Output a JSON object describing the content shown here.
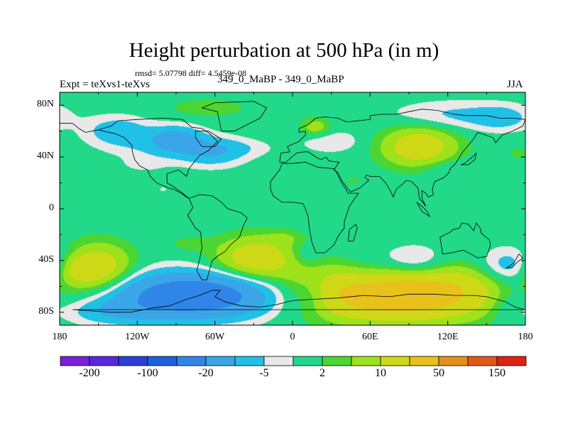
{
  "figure": {
    "title": "Height perturbation at 500 hPa (in m)",
    "stats": "rmsd= 5.07798 diff= 4.5459e-08",
    "left_label": "Expt = teXvs1-teXvs",
    "center_label": "349_0_MaBP - 349_0_MaBP",
    "right_label": "JJA"
  },
  "chart_data": {
    "type": "heatmap",
    "title": "Height perturbation at 500 hPa (in m)",
    "variable": "500 hPa geopotential height perturbation",
    "units": "m",
    "season": "JJA",
    "xlim": [
      -180,
      180
    ],
    "ylim": [
      -90,
      90
    ],
    "x_ticks": [
      {
        "value": -180,
        "label": "180"
      },
      {
        "value": -120,
        "label": "120W"
      },
      {
        "value": -60,
        "label": "60W"
      },
      {
        "value": 0,
        "label": "0"
      },
      {
        "value": 60,
        "label": "60E"
      },
      {
        "value": 120,
        "label": "120E"
      },
      {
        "value": 180,
        "label": "180"
      }
    ],
    "y_ticks": [
      {
        "value": 80,
        "label": "80N"
      },
      {
        "value": 40,
        "label": "40N"
      },
      {
        "value": 0,
        "label": "0"
      },
      {
        "value": -40,
        "label": "40S"
      },
      {
        "value": -80,
        "label": "80S"
      }
    ],
    "colorbar": {
      "colors": [
        "#7c1fd6",
        "#5a28e0",
        "#2b3fd8",
        "#1e5fe0",
        "#2f86e8",
        "#3aa6e8",
        "#21c0e6",
        "#e8e8e8",
        "#22d889",
        "#4cd633",
        "#9ee21b",
        "#cfd816",
        "#e8c11a",
        "#e58f1a",
        "#e3561b",
        "#e02010"
      ],
      "labels": [
        {
          "boundary": 1,
          "label": "-200"
        },
        {
          "boundary": 3,
          "label": "-100"
        },
        {
          "boundary": 5,
          "label": "-20"
        },
        {
          "boundary": 7,
          "label": "-5"
        },
        {
          "boundary": 9,
          "label": "2"
        },
        {
          "boundary": 11,
          "label": "10"
        },
        {
          "boundary": 13,
          "label": "50"
        },
        {
          "boundary": 15,
          "label": "150"
        }
      ]
    },
    "anomalies": [
      {
        "lon": -168,
        "lat": -47,
        "sx": 11,
        "sy": 8,
        "amp": 8
      },
      {
        "lon": -150,
        "lat": -46,
        "sx": 18,
        "sy": 13,
        "amp": 16
      },
      {
        "lon": -75,
        "lat": -67,
        "sx": 45,
        "sy": 12,
        "amp": -32
      },
      {
        "lon": -140,
        "lat": -80,
        "sx": 28,
        "sy": 7,
        "amp": -7
      },
      {
        "lon": -28,
        "lat": -39,
        "sx": 22,
        "sy": 12,
        "amp": 16
      },
      {
        "lon": -80,
        "lat": -27,
        "sx": 12,
        "sy": 4,
        "amp": 3
      },
      {
        "lon": -5,
        "lat": -22,
        "sx": 10,
        "sy": 4,
        "amp": 3
      },
      {
        "lon": 10,
        "lat": -36,
        "sx": 9,
        "sy": 6,
        "amp": -4
      },
      {
        "lon": 16,
        "lat": -67,
        "sx": 10,
        "sy": 10,
        "amp": -6
      },
      {
        "lon": 60,
        "lat": -52,
        "sx": 18,
        "sy": 12,
        "amp": -7
      },
      {
        "lon": 95,
        "lat": -44,
        "sx": 18,
        "sy": 10,
        "amp": -10
      },
      {
        "lon": 80,
        "lat": -65,
        "sx": 52,
        "sy": 14,
        "amp": 34
      },
      {
        "lon": 170,
        "lat": -45,
        "sx": 18,
        "sy": 10,
        "amp": -10
      },
      {
        "lon": 165,
        "lat": -72,
        "sx": 12,
        "sy": 10,
        "amp": -5
      },
      {
        "lon": -135,
        "lat": 60,
        "sx": 18,
        "sy": 8,
        "amp": -8
      },
      {
        "lon": -90,
        "lat": 54,
        "sx": 14,
        "sy": 7,
        "amp": -12
      },
      {
        "lon": -115,
        "lat": 34,
        "sx": 12,
        "sy": 4,
        "amp": -2.5
      },
      {
        "lon": -105,
        "lat": 47,
        "sx": 25,
        "sy": 8,
        "amp": -4
      },
      {
        "lon": -62,
        "lat": 44,
        "sx": 18,
        "sy": 8,
        "amp": -9
      },
      {
        "lon": -40,
        "lat": 47,
        "sx": 20,
        "sy": 5,
        "amp": -3
      },
      {
        "lon": -65,
        "lat": 78,
        "sx": 22,
        "sy": 5,
        "amp": 4
      },
      {
        "lon": -100,
        "lat": 15,
        "sx": 5,
        "sy": 3,
        "amp": -2.2
      },
      {
        "lon": 18,
        "lat": 63,
        "sx": 8,
        "sy": 5,
        "amp": 8
      },
      {
        "lon": 30,
        "lat": 52,
        "sx": 16,
        "sy": 6,
        "amp": -5
      },
      {
        "lon": 47,
        "lat": 22,
        "sx": 5,
        "sy": 2,
        "amp": 3
      },
      {
        "lon": 98,
        "lat": 48,
        "sx": 20,
        "sy": 11,
        "amp": 16
      },
      {
        "lon": 125,
        "lat": 72,
        "sx": 35,
        "sy": 8,
        "amp": -6
      },
      {
        "lon": 122,
        "lat": 32,
        "sx": 17,
        "sy": 5,
        "amp": -3.5
      },
      {
        "lon": 162,
        "lat": 70,
        "sx": 15,
        "sy": 7,
        "amp": -5
      },
      {
        "lon": 175,
        "lat": 43,
        "sx": 6,
        "sy": 4,
        "amp": 3
      }
    ],
    "coastlines": [
      [
        [
          180,
          -78
        ],
        [
          -170,
          -78
        ],
        [
          -155,
          -79
        ],
        [
          -140,
          -80
        ],
        [
          -125,
          -80
        ],
        [
          -110,
          -77
        ],
        [
          -95,
          -75
        ],
        [
          -82,
          -70
        ],
        [
          -72,
          -67
        ],
        [
          -62,
          -63
        ],
        [
          -56,
          -63
        ],
        [
          -60,
          -68
        ],
        [
          -52,
          -72
        ],
        [
          -40,
          -75
        ],
        [
          -25,
          -76
        ],
        [
          -12,
          -74
        ],
        [
          0,
          -71
        ],
        [
          15,
          -70
        ],
        [
          35,
          -69
        ],
        [
          55,
          -67
        ],
        [
          75,
          -68
        ],
        [
          90,
          -66
        ],
        [
          110,
          -66
        ],
        [
          125,
          -67
        ],
        [
          140,
          -67
        ],
        [
          150,
          -68
        ],
        [
          165,
          -72
        ],
        [
          172,
          -76
        ],
        [
          180,
          -78
        ]
      ],
      [
        [
          -140,
          64
        ],
        [
          -135,
          68
        ],
        [
          -120,
          69
        ],
        [
          -100,
          70
        ],
        [
          -85,
          69
        ],
        [
          -78,
          63
        ],
        [
          -70,
          62
        ],
        [
          -64,
          58
        ],
        [
          -58,
          52
        ],
        [
          -65,
          45
        ],
        [
          -72,
          41
        ],
        [
          -76,
          36
        ],
        [
          -80,
          31
        ],
        [
          -82,
          25
        ],
        [
          -88,
          30
        ],
        [
          -97,
          27
        ],
        [
          -97,
          20
        ],
        [
          -92,
          17
        ],
        [
          -85,
          12
        ],
        [
          -80,
          8
        ],
        [
          -82,
          9
        ],
        [
          -86,
          12
        ],
        [
          -92,
          15
        ],
        [
          -96,
          16
        ],
        [
          -105,
          20
        ],
        [
          -110,
          25
        ],
        [
          -112,
          30
        ],
        [
          -118,
          33
        ],
        [
          -122,
          38
        ],
        [
          -124,
          45
        ],
        [
          -124,
          49
        ],
        [
          -130,
          55
        ],
        [
          -137,
          58
        ],
        [
          -146,
          60
        ],
        [
          -150,
          61
        ],
        [
          -140,
          64
        ]
      ],
      [
        [
          -80,
          8
        ],
        [
          -77,
          1
        ],
        [
          -81,
          -5
        ],
        [
          -75,
          -15
        ],
        [
          -71,
          -18
        ],
        [
          -70,
          -30
        ],
        [
          -72,
          -40
        ],
        [
          -74,
          -48
        ],
        [
          -70,
          -55
        ],
        [
          -66,
          -55
        ],
        [
          -65,
          -50
        ],
        [
          -62,
          -40
        ],
        [
          -57,
          -36
        ],
        [
          -52,
          -33
        ],
        [
          -48,
          -28
        ],
        [
          -41,
          -22
        ],
        [
          -38,
          -13
        ],
        [
          -35,
          -7
        ],
        [
          -40,
          -3
        ],
        [
          -50,
          0
        ],
        [
          -55,
          5
        ],
        [
          -62,
          10
        ],
        [
          -72,
          11
        ],
        [
          -77,
          9
        ],
        [
          -80,
          8
        ]
      ],
      [
        [
          -17,
          15
        ],
        [
          -15,
          10
        ],
        [
          -8,
          5
        ],
        [
          0,
          5
        ],
        [
          8,
          4
        ],
        [
          10,
          0
        ],
        [
          12,
          -6
        ],
        [
          13,
          -15
        ],
        [
          15,
          -26
        ],
        [
          18,
          -34
        ],
        [
          25,
          -34
        ],
        [
          32,
          -28
        ],
        [
          36,
          -20
        ],
        [
          40,
          -15
        ],
        [
          40,
          -10
        ],
        [
          44,
          2
        ],
        [
          51,
          12
        ],
        [
          43,
          12
        ],
        [
          38,
          20
        ],
        [
          34,
          28
        ],
        [
          32,
          31
        ],
        [
          20,
          32
        ],
        [
          10,
          36
        ],
        [
          0,
          35
        ],
        [
          -8,
          35
        ],
        [
          -10,
          30
        ],
        [
          -17,
          21
        ],
        [
          -17,
          15
        ]
      ],
      [
        [
          -10,
          36
        ],
        [
          -9,
          43
        ],
        [
          -2,
          44
        ],
        [
          -4,
          48
        ],
        [
          5,
          52
        ],
        [
          8,
          55
        ],
        [
          10,
          57
        ],
        [
          10,
          60
        ],
        [
          5,
          59
        ],
        [
          5,
          62
        ],
        [
          12,
          65
        ],
        [
          18,
          70
        ],
        [
          25,
          71
        ],
        [
          35,
          70
        ],
        [
          42,
          67
        ],
        [
          50,
          68
        ],
        [
          60,
          69
        ],
        [
          60,
          72
        ],
        [
          68,
          73
        ],
        [
          80,
          73
        ],
        [
          90,
          75
        ],
        [
          100,
          77
        ],
        [
          112,
          76
        ],
        [
          125,
          73
        ],
        [
          135,
          72
        ],
        [
          150,
          72
        ],
        [
          160,
          70
        ],
        [
          170,
          70
        ],
        [
          180,
          69
        ]
      ],
      [
        [
          -180,
          66
        ],
        [
          -170,
          66
        ],
        [
          -165,
          62
        ],
        [
          -160,
          59
        ],
        [
          -150,
          61
        ]
      ],
      [
        [
          180,
          69
        ],
        [
          178,
          64
        ],
        [
          170,
          60
        ],
        [
          162,
          57
        ],
        [
          157,
          51
        ],
        [
          155,
          55
        ],
        [
          143,
          59
        ],
        [
          140,
          54
        ],
        [
          135,
          48
        ],
        [
          131,
          43
        ],
        [
          128,
          38
        ],
        [
          126,
          35
        ],
        [
          122,
          31
        ],
        [
          121,
          28
        ],
        [
          117,
          24
        ],
        [
          110,
          21
        ],
        [
          108,
          15
        ],
        [
          109,
          11
        ],
        [
          105,
          9
        ],
        [
          103,
          12
        ],
        [
          100,
          14
        ],
        [
          100,
          8
        ],
        [
          103,
          2
        ],
        [
          98,
          8
        ],
        [
          97,
          16
        ],
        [
          92,
          21
        ],
        [
          88,
          22
        ],
        [
          85,
          19
        ],
        [
          80,
          15
        ],
        [
          78,
          9
        ],
        [
          75,
          15
        ],
        [
          72,
          20
        ],
        [
          70,
          22
        ],
        [
          67,
          25
        ],
        [
          60,
          25
        ],
        [
          57,
          26
        ],
        [
          56,
          24
        ],
        [
          59,
          22
        ],
        [
          52,
          16
        ],
        [
          45,
          13
        ],
        [
          43,
          15
        ],
        [
          38,
          22
        ],
        [
          35,
          28
        ],
        [
          32,
          30
        ],
        [
          36,
          36
        ],
        [
          28,
          37
        ],
        [
          26,
          40
        ],
        [
          22,
          38
        ],
        [
          18,
          40
        ],
        [
          12,
          44
        ],
        [
          9,
          44
        ],
        [
          3,
          43
        ],
        [
          -5,
          36
        ],
        [
          -10,
          36
        ]
      ],
      [
        [
          114,
          -22
        ],
        [
          116,
          -35
        ],
        [
          123,
          -34
        ],
        [
          132,
          -32
        ],
        [
          138,
          -35
        ],
        [
          143,
          -38
        ],
        [
          150,
          -37
        ],
        [
          153,
          -28
        ],
        [
          152,
          -24
        ],
        [
          146,
          -19
        ],
        [
          145,
          -15
        ],
        [
          142,
          -11
        ],
        [
          140,
          -17
        ],
        [
          136,
          -12
        ],
        [
          131,
          -11
        ],
        [
          129,
          -15
        ],
        [
          124,
          -16
        ],
        [
          122,
          -18
        ],
        [
          114,
          -22
        ]
      ],
      [
        [
          96,
          5
        ],
        [
          100,
          2
        ],
        [
          104,
          -2
        ],
        [
          106,
          -6
        ],
        [
          100,
          -2
        ],
        [
          96,
          5
        ]
      ],
      [
        [
          -75,
          60
        ],
        [
          -65,
          60
        ],
        [
          -55,
          54
        ],
        [
          -60,
          48
        ],
        [
          -70,
          48
        ],
        [
          -75,
          55
        ],
        [
          -75,
          60
        ]
      ],
      [
        [
          -55,
          60
        ],
        [
          -45,
          60
        ],
        [
          -25,
          70
        ],
        [
          -20,
          78
        ],
        [
          -30,
          83
        ],
        [
          -60,
          82
        ],
        [
          -70,
          78
        ],
        [
          -58,
          75
        ],
        [
          -55,
          60
        ]
      ],
      [
        [
          165,
          -46
        ],
        [
          170,
          -45
        ],
        [
          174,
          -41
        ],
        [
          178,
          -38
        ],
        [
          175,
          -35
        ],
        [
          171,
          -42
        ],
        [
          165,
          -46
        ]
      ],
      [
        [
          43,
          -25
        ],
        [
          47,
          -25
        ],
        [
          50,
          -15
        ],
        [
          49,
          -12
        ],
        [
          44,
          -16
        ],
        [
          43,
          -25
        ]
      ],
      [
        [
          130,
          34
        ],
        [
          136,
          34
        ],
        [
          141,
          38
        ],
        [
          142,
          43
        ],
        [
          139,
          40
        ],
        [
          133,
          35
        ],
        [
          130,
          34
        ]
      ]
    ]
  }
}
